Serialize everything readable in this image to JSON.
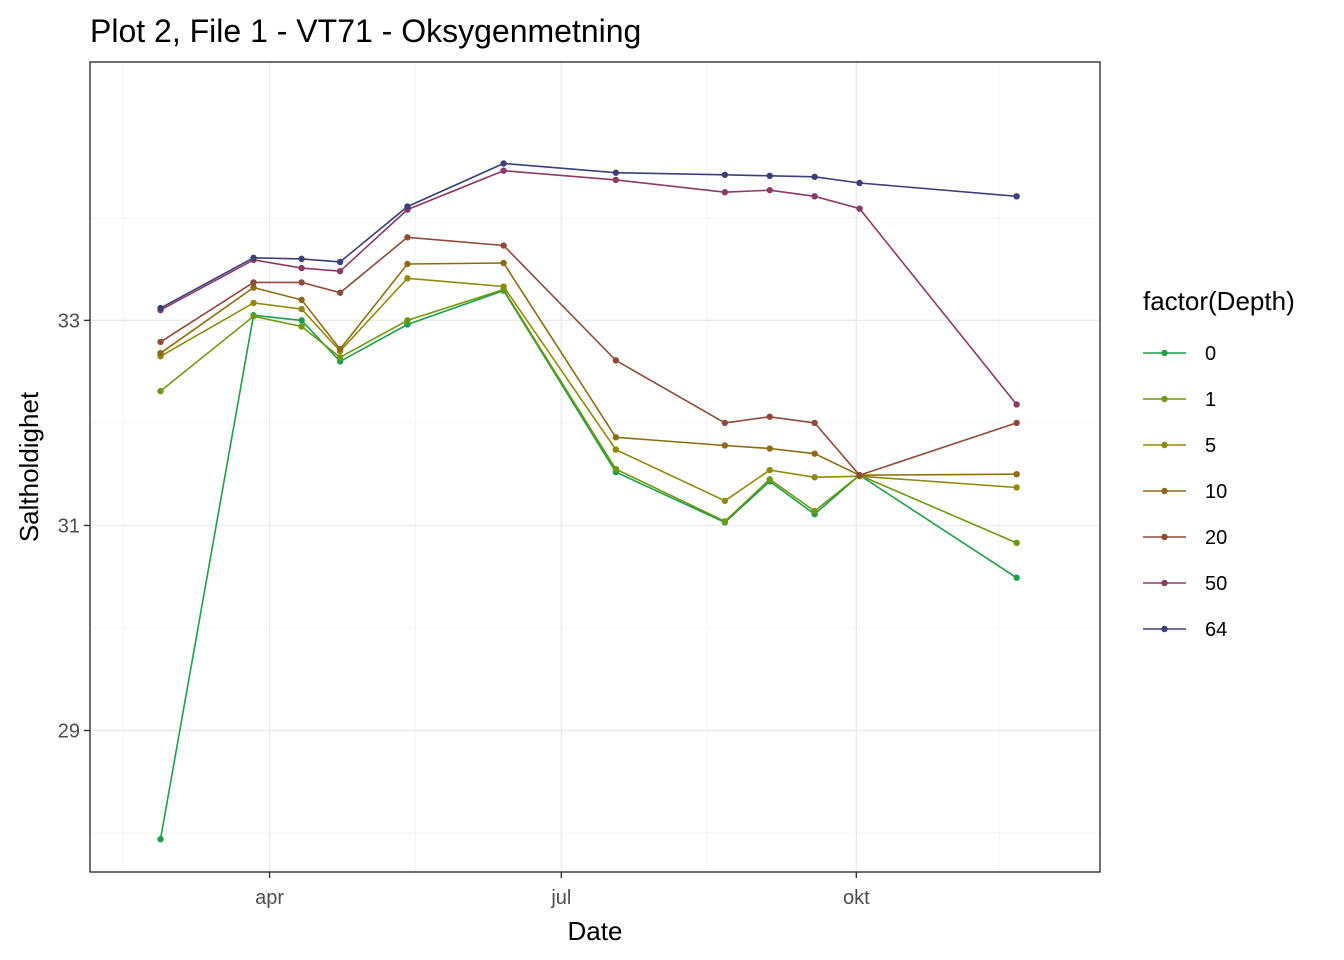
{
  "chart_data": {
    "type": "line",
    "title": "Plot 2, File 1 - VT71  -  Oksygenmetning",
    "xlabel": "Date",
    "ylabel": "Saltholdighet",
    "x_ticks": [
      {
        "label": "apr",
        "date": "2019-04-01"
      },
      {
        "label": "jul",
        "date": "2019-07-01"
      },
      {
        "label": "okt",
        "date": "2019-10-01"
      }
    ],
    "y_ticks": [
      29,
      31,
      33
    ],
    "xlim": [
      "2019-02-04",
      "2019-12-16"
    ],
    "ylim": [
      27.62,
      35.52
    ],
    "grid": true,
    "legend": {
      "title": "factor(Depth)",
      "position": "right"
    },
    "x": [
      "2019-02-26",
      "2019-03-27",
      "2019-04-11",
      "2019-04-23",
      "2019-05-14",
      "2019-06-13",
      "2019-07-18",
      "2019-08-21",
      "2019-09-04",
      "2019-09-18",
      "2019-10-02",
      "2019-11-20"
    ],
    "series": [
      {
        "name": "0",
        "color": "#1f9e4b",
        "values": [
          27.94,
          33.05,
          33.0,
          32.6,
          32.96,
          33.29,
          31.52,
          31.03,
          31.43,
          31.11,
          31.49,
          30.49
        ]
      },
      {
        "name": "1",
        "color": "#6e9a10",
        "values": [
          32.31,
          33.04,
          32.94,
          32.64,
          33.0,
          33.3,
          31.55,
          31.04,
          31.45,
          31.14,
          31.49,
          30.83
        ]
      },
      {
        "name": "5",
        "color": "#8f8a0c",
        "values": [
          32.65,
          33.17,
          33.11,
          32.7,
          33.41,
          33.33,
          31.74,
          31.24,
          31.54,
          31.47,
          31.48,
          31.37
        ]
      },
      {
        "name": "10",
        "color": "#8f6a10",
        "values": [
          32.68,
          33.32,
          33.2,
          32.72,
          33.55,
          33.56,
          31.86,
          31.78,
          31.75,
          31.7,
          31.49,
          31.5
        ]
      },
      {
        "name": "20",
        "color": "#8e4a3a",
        "values": [
          32.79,
          33.37,
          33.37,
          33.27,
          33.81,
          33.73,
          32.61,
          32.0,
          32.06,
          32.0,
          31.49,
          32.0
        ]
      },
      {
        "name": "50",
        "color": "#8b3a66",
        "values": [
          33.1,
          33.59,
          33.51,
          33.48,
          34.08,
          34.46,
          34.37,
          34.25,
          34.27,
          34.21,
          34.09,
          32.18
        ]
      },
      {
        "name": "64",
        "color": "#3b3f7a",
        "values": [
          33.12,
          33.61,
          33.6,
          33.57,
          34.11,
          34.53,
          34.44,
          34.42,
          34.41,
          34.4,
          34.34,
          34.21
        ]
      }
    ]
  }
}
